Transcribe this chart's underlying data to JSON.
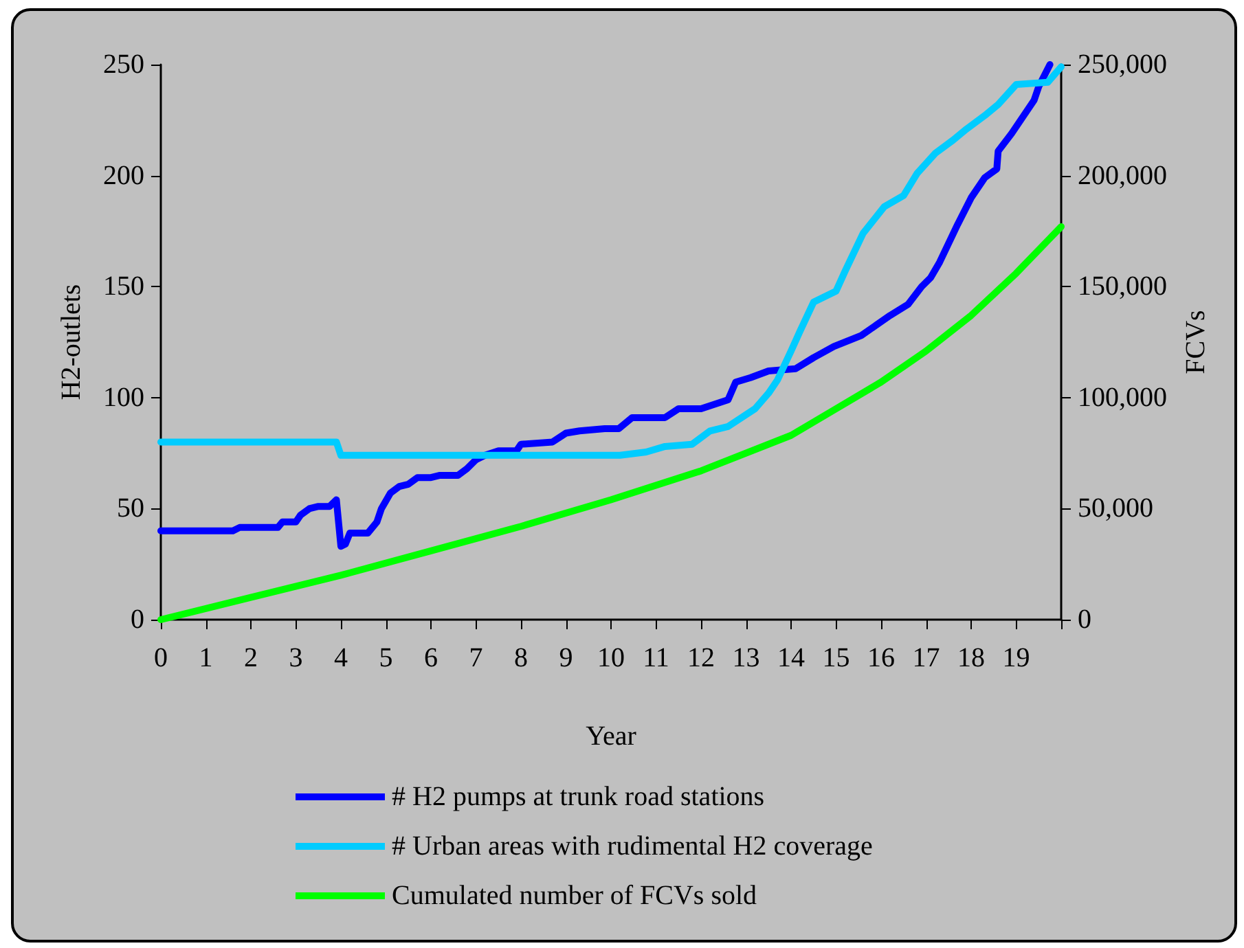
{
  "chart_data": {
    "type": "line",
    "xlabel": "Year",
    "ylabel": "H2-outlets",
    "y2label": "FCVs",
    "xlim": [
      0,
      20
    ],
    "xticks": [
      0,
      1,
      2,
      3,
      4,
      5,
      6,
      7,
      8,
      9,
      10,
      11,
      12,
      13,
      14,
      15,
      16,
      17,
      18,
      19,
      {
        "value": 20,
        "label": null
      }
    ],
    "ylim": [
      0,
      250
    ],
    "yticks": [
      0,
      50,
      100,
      150,
      200,
      250
    ],
    "y2lim": [
      0,
      250000
    ],
    "y2ticks": [
      {
        "value": 0,
        "label": "0"
      },
      {
        "value": 50000,
        "label": "50,000"
      },
      {
        "value": 100000,
        "label": "100,000"
      },
      {
        "value": 150000,
        "label": "150,000"
      },
      {
        "value": 200000,
        "label": "200,000"
      },
      {
        "value": 250000,
        "label": "250,000"
      }
    ],
    "grid": false,
    "legend": "bottom",
    "marker": "none",
    "line_style": "solid",
    "series": [
      {
        "name": "# H2 pumps at trunk road stations",
        "color": "#0000ff",
        "x": [
          0,
          1.6,
          1.75,
          2.6,
          2.7,
          3.0,
          3.1,
          3.3,
          3.5,
          3.75,
          3.9,
          4.0,
          4.1,
          4.2,
          4.6,
          4.8,
          4.9,
          5.1,
          5.3,
          5.5,
          5.7,
          6.0,
          6.2,
          6.6,
          6.8,
          7.0,
          7.2,
          7.5,
          7.9,
          8.0,
          8.7,
          9.0,
          9.3,
          9.86,
          10.17,
          10.47,
          11.2,
          11.5,
          12.0,
          12.6,
          12.77,
          13.1,
          13.5,
          14.1,
          14.5,
          14.95,
          15.56,
          16.2,
          16.6,
          16.9,
          17.1,
          17.3,
          17.7,
          18.0,
          18.3,
          18.57,
          18.6,
          18.9,
          19.4,
          19.5,
          19.75
        ],
        "values": [
          40,
          40,
          41.5,
          41.5,
          44,
          44,
          47,
          50,
          51,
          51,
          54,
          33,
          34,
          39,
          39,
          44,
          50,
          57,
          60,
          61,
          64,
          64,
          65,
          65,
          68,
          72,
          74,
          76,
          76,
          79,
          80,
          84,
          85,
          86,
          86,
          91,
          91,
          95,
          95,
          99,
          107,
          109,
          112,
          113,
          118,
          123,
          128,
          137,
          142,
          150,
          154,
          161,
          178,
          190,
          199,
          203,
          211,
          219,
          234,
          240,
          250
        ]
      },
      {
        "name": "# Urban areas with rudimental H2 coverage",
        "color": "#00ccff",
        "x": [
          0,
          3.9,
          4.0,
          10.2,
          10.78,
          11.2,
          11.8,
          12.2,
          12.6,
          13.2,
          13.5,
          13.7,
          14.0,
          14.2,
          14.5,
          15.0,
          15.2,
          15.6,
          16.07,
          16.5,
          16.8,
          17.2,
          17.6,
          17.9,
          18.3,
          18.6,
          19.0,
          19.7,
          20.0
        ],
        "values": [
          80,
          80,
          74,
          74,
          75.5,
          78,
          79,
          85,
          87,
          95,
          102,
          108,
          121,
          130,
          143,
          148,
          157,
          174,
          186,
          191,
          201,
          210,
          216,
          221,
          227,
          232,
          241,
          242,
          249
        ]
      },
      {
        "name": "Cumulated number of FCVs sold",
        "color": "#00ff00",
        "axis": "y2",
        "x": [
          0,
          2,
          4,
          6,
          8,
          10,
          12,
          14,
          15,
          16,
          17,
          18,
          19,
          20
        ],
        "values": [
          0,
          10000,
          20000,
          31000,
          42000,
          54000,
          67000,
          83000,
          95000,
          107000,
          121000,
          137000,
          156000,
          177000
        ]
      }
    ]
  }
}
